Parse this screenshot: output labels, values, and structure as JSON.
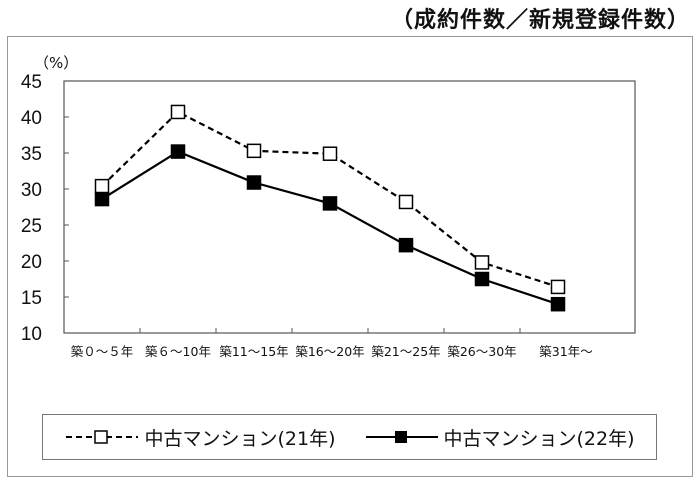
{
  "title": "（成約件数／新規登録件数）",
  "chart_data": {
    "type": "line",
    "title": "（成約件数／新規登録件数）",
    "yunit": "（%）",
    "ylim": [
      10,
      45
    ],
    "yticks": [
      "10",
      "15",
      "20",
      "25",
      "30",
      "35",
      "40",
      "45"
    ],
    "categories": [
      "築０～５年",
      "築６～10年",
      "築11～15年",
      "築16～20年",
      "築21～25年",
      "築26～30年",
      "築31年～"
    ],
    "series": [
      {
        "name": "中古マンション(21年)",
        "style": "dashed",
        "marker": "open-square",
        "values": [
          30.4,
          40.7,
          35.3,
          34.9,
          28.2,
          19.8,
          16.4
        ]
      },
      {
        "name": "中古マンション(22年)",
        "style": "solid",
        "marker": "filled-square",
        "values": [
          28.6,
          35.2,
          30.9,
          28.0,
          22.2,
          17.5,
          14.0
        ]
      }
    ],
    "legend": "bottom",
    "grid": false
  }
}
